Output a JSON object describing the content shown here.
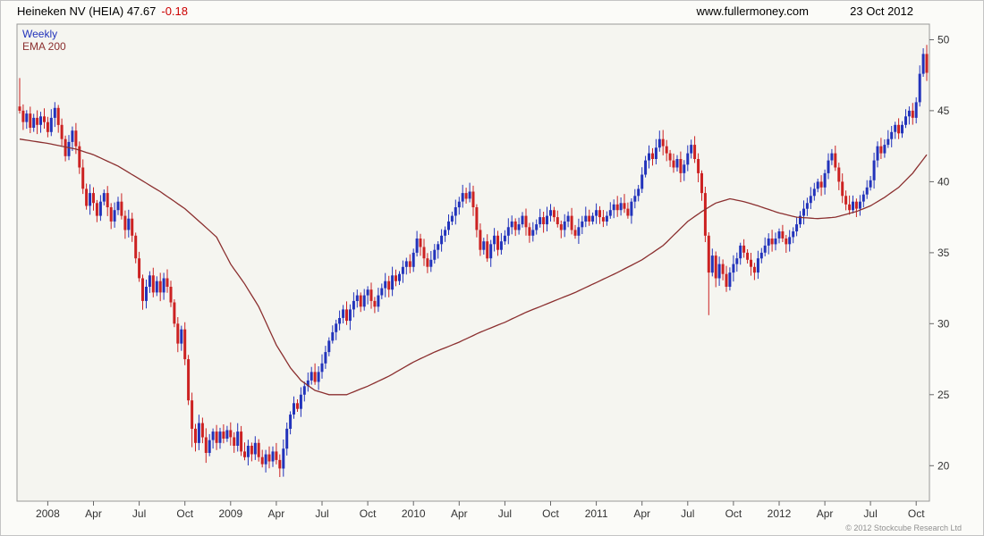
{
  "header": {
    "title": "Heineken NV (HEIA) 47.67",
    "change": "-0.18",
    "site": "www.fullermoney.com",
    "date": "23 Oct 2012"
  },
  "legend": {
    "timeframe": "Weekly",
    "overlay": "EMA 200"
  },
  "footer": {
    "copyright": "© 2012 Stockcube Research Ltd"
  },
  "colors": {
    "up": "#2233bb",
    "down": "#cc2222",
    "ema": "#8b2f2f",
    "change_text": "#cc0000",
    "axis_text": "#333333",
    "tick": "#666666",
    "plot_border": "#999999",
    "plot_bg": "#f5f5f0",
    "page_bg": "#fbfbf8"
  },
  "chart_data": {
    "type": "candlestick",
    "timeframe": "weekly",
    "instrument": "Heineken NV",
    "ticker": "HEIA",
    "last_price": 47.67,
    "change": -0.18,
    "title": "Heineken NV (HEIA) weekly candlestick chart with 200-period EMA overlay, Nov 2007 - 23 Oct 2012",
    "price_axis_side": "right",
    "grid": false,
    "ylim": [
      17.5,
      51.1
    ],
    "yticks": [
      20,
      25,
      30,
      35,
      40,
      45,
      50
    ],
    "weeks": 259,
    "x_labels": [
      {
        "label": "2008",
        "week": 8
      },
      {
        "label": "Apr",
        "week": 21
      },
      {
        "label": "Jul",
        "week": 34
      },
      {
        "label": "Oct",
        "week": 47
      },
      {
        "label": "2009",
        "week": 60
      },
      {
        "label": "Apr",
        "week": 73
      },
      {
        "label": "Jul",
        "week": 86
      },
      {
        "label": "Oct",
        "week": 99
      },
      {
        "label": "2010",
        "week": 112
      },
      {
        "label": "Apr",
        "week": 125
      },
      {
        "label": "Jul",
        "week": 138
      },
      {
        "label": "Oct",
        "week": 151
      },
      {
        "label": "2011",
        "week": 164
      },
      {
        "label": "Apr",
        "week": 177
      },
      {
        "label": "Jul",
        "week": 190
      },
      {
        "label": "Oct",
        "week": 203
      },
      {
        "label": "2012",
        "week": 216
      },
      {
        "label": "Apr",
        "week": 229
      },
      {
        "label": "Jul",
        "week": 242
      },
      {
        "label": "Oct",
        "week": 255
      }
    ],
    "first_open": 45.3,
    "closes": [
      45.0,
      44.2,
      44.8,
      43.8,
      44.5,
      44.0,
      44.6,
      44.2,
      43.5,
      44.5,
      45.2,
      44.0,
      43.0,
      41.8,
      42.8,
      43.6,
      42.5,
      41.0,
      39.5,
      38.3,
      39.2,
      38.5,
      37.6,
      38.6,
      39.2,
      38.2,
      37.2,
      38.0,
      38.6,
      37.6,
      36.6,
      37.4,
      36.2,
      34.6,
      33.2,
      31.6,
      32.6,
      33.4,
      32.2,
      33.0,
      32.2,
      33.2,
      32.6,
      31.5,
      30.0,
      28.6,
      29.6,
      27.5,
      24.6,
      22.6,
      21.6,
      23.0,
      22.0,
      20.9,
      21.8,
      22.4,
      21.6,
      22.4,
      21.9,
      22.5,
      22.0,
      21.4,
      22.4,
      21.0,
      20.6,
      21.4,
      20.8,
      21.6,
      20.6,
      20.1,
      20.8,
      20.3,
      21.0,
      20.4,
      19.8,
      21.2,
      22.6,
      23.6,
      24.4,
      24.0,
      25.0,
      25.6,
      26.0,
      26.6,
      25.9,
      26.6,
      27.2,
      28.0,
      28.8,
      29.4,
      30.0,
      30.4,
      31.0,
      30.2,
      31.0,
      31.6,
      32.0,
      31.2,
      32.0,
      32.4,
      31.6,
      31.2,
      32.0,
      32.5,
      33.0,
      32.4,
      33.4,
      33.0,
      33.5,
      34.0,
      34.4,
      34.0,
      35.0,
      36.0,
      35.4,
      34.6,
      34.0,
      34.5,
      35.2,
      35.6,
      36.2,
      36.6,
      37.2,
      37.6,
      38.2,
      38.6,
      39.2,
      38.8,
      39.3,
      38.2,
      36.6,
      35.2,
      35.8,
      34.6,
      35.6,
      36.2,
      35.2,
      35.8,
      36.2,
      36.8,
      37.2,
      36.6,
      37.0,
      37.6,
      36.8,
      36.2,
      36.6,
      37.0,
      37.5,
      37.0,
      37.6,
      38.0,
      37.5,
      37.0,
      36.6,
      37.2,
      37.6,
      36.6,
      36.2,
      36.8,
      37.2,
      37.6,
      37.2,
      37.6,
      38.0,
      37.5,
      37.2,
      37.6,
      38.0,
      38.4,
      38.0,
      38.5,
      38.1,
      37.6,
      38.6,
      39.0,
      39.5,
      40.5,
      41.5,
      42.0,
      41.6,
      42.4,
      43.0,
      42.5,
      42.0,
      41.5,
      41.0,
      41.6,
      40.6,
      41.2,
      42.0,
      42.6,
      41.6,
      40.6,
      39.2,
      36.2,
      33.6,
      34.8,
      33.2,
      34.2,
      33.5,
      32.6,
      33.6,
      34.2,
      34.6,
      35.5,
      35.0,
      34.5,
      34.0,
      33.6,
      34.6,
      35.0,
      35.5,
      36.0,
      35.6,
      36.0,
      36.5,
      36.0,
      35.6,
      36.1,
      36.5,
      37.0,
      37.6,
      38.1,
      38.5,
      39.0,
      39.5,
      40.0,
      39.6,
      40.6,
      41.5,
      42.0,
      41.0,
      40.0,
      39.0,
      38.4,
      38.0,
      38.6,
      38.1,
      38.6,
      39.1,
      39.6,
      40.1,
      41.5,
      42.5,
      42.0,
      42.6,
      43.0,
      43.5,
      44.0,
      43.4,
      44.0,
      44.6,
      45.0,
      44.5,
      45.6,
      47.6,
      49.0,
      47.67
    ],
    "overrides": {
      "0": {
        "high": 47.3
      },
      "49": {
        "low": 21.3
      },
      "53": {
        "low": 20.2
      },
      "74": {
        "low": 19.2
      },
      "128": {
        "high": 39.8
      },
      "182": {
        "high": 43.6
      },
      "196": {
        "low": 30.6
      },
      "257": {
        "high": 49.4
      },
      "258": {
        "high": 48.7
      }
    },
    "ema_points": [
      [
        0,
        43.0
      ],
      [
        8,
        42.7
      ],
      [
        16,
        42.3
      ],
      [
        21,
        41.9
      ],
      [
        28,
        41.1
      ],
      [
        34,
        40.2
      ],
      [
        40,
        39.3
      ],
      [
        47,
        38.1
      ],
      [
        52,
        37.0
      ],
      [
        56,
        36.1
      ],
      [
        60,
        34.2
      ],
      [
        64,
        32.8
      ],
      [
        68,
        31.2
      ],
      [
        73,
        28.5
      ],
      [
        77,
        26.9
      ],
      [
        80,
        26.0
      ],
      [
        84,
        25.3
      ],
      [
        88,
        25.0
      ],
      [
        93,
        25.0
      ],
      [
        99,
        25.6
      ],
      [
        105,
        26.3
      ],
      [
        112,
        27.3
      ],
      [
        118,
        28.0
      ],
      [
        125,
        28.7
      ],
      [
        131,
        29.4
      ],
      [
        138,
        30.1
      ],
      [
        144,
        30.8
      ],
      [
        151,
        31.5
      ],
      [
        158,
        32.2
      ],
      [
        164,
        32.9
      ],
      [
        170,
        33.6
      ],
      [
        177,
        34.5
      ],
      [
        183,
        35.5
      ],
      [
        190,
        37.2
      ],
      [
        194,
        37.9
      ],
      [
        198,
        38.5
      ],
      [
        202,
        38.8
      ],
      [
        206,
        38.6
      ],
      [
        210,
        38.3
      ],
      [
        216,
        37.8
      ],
      [
        221,
        37.5
      ],
      [
        227,
        37.4
      ],
      [
        232,
        37.5
      ],
      [
        238,
        37.9
      ],
      [
        242,
        38.3
      ],
      [
        246,
        38.9
      ],
      [
        250,
        39.6
      ],
      [
        254,
        40.6
      ],
      [
        258,
        41.9
      ]
    ]
  }
}
